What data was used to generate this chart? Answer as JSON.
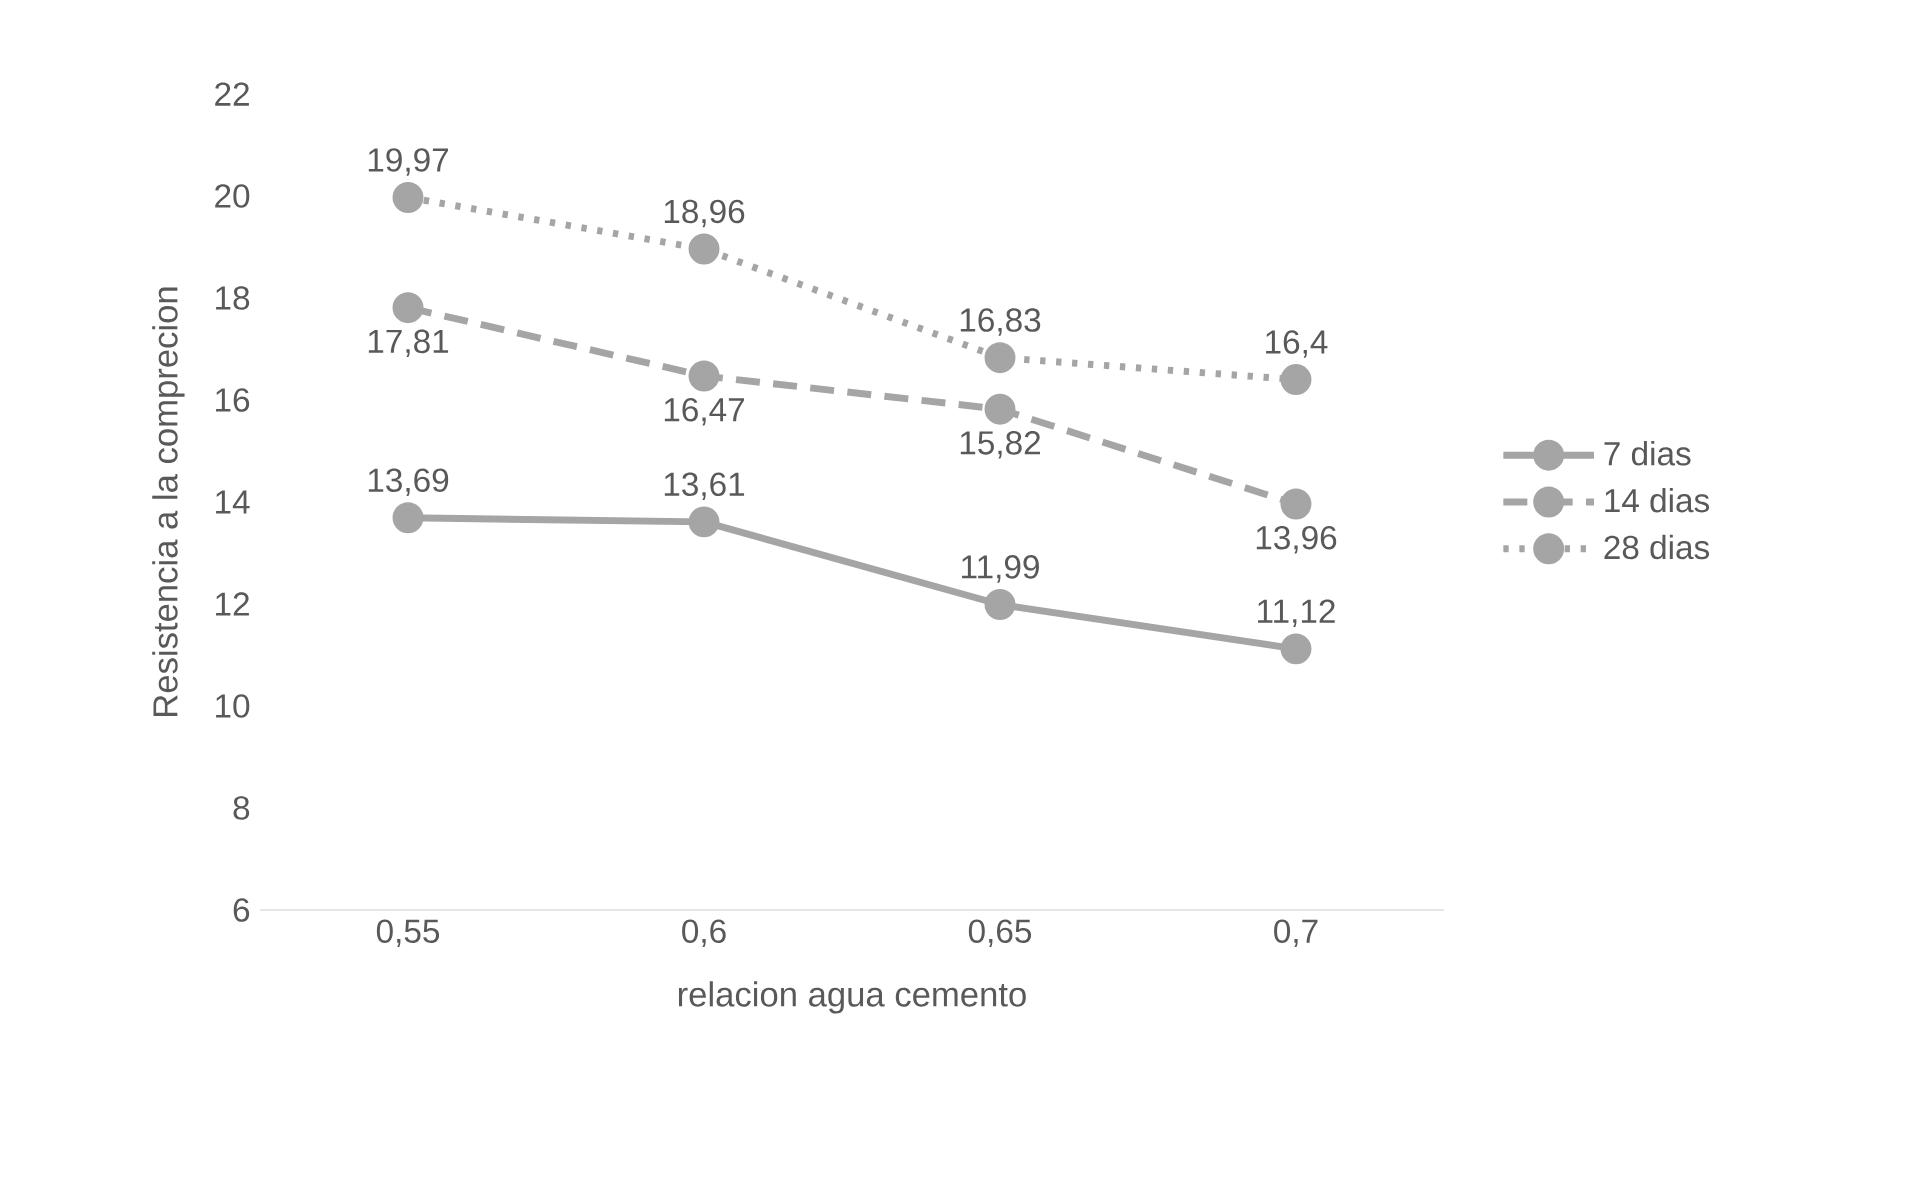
{
  "chart_data": {
    "type": "line",
    "xlabel": "relacion agua cemento",
    "ylabel": "Resistencia a la comprecion",
    "categories": [
      "0,55",
      "0,6",
      "0,65",
      "0,7"
    ],
    "ylim": [
      6,
      22
    ],
    "yticks": [
      6,
      8,
      10,
      12,
      14,
      16,
      18,
      20,
      22
    ],
    "series": [
      {
        "name": "7 dias",
        "color": "#a5a5a5",
        "line_style": "solid",
        "values": [
          13.69,
          13.61,
          11.99,
          11.12
        ],
        "value_labels": [
          "13,69",
          "13,61",
          "11,99",
          "11,12"
        ]
      },
      {
        "name": "14 dias",
        "color": "#a5a5a5",
        "line_style": "dashed",
        "values": [
          17.81,
          16.47,
          15.82,
          13.96
        ],
        "value_labels": [
          "17,81",
          "16,47",
          "15,82",
          "13,96"
        ]
      },
      {
        "name": "28 dias",
        "color": "#a5a5a5",
        "line_style": "dotted",
        "values": [
          19.97,
          18.96,
          16.83,
          16.4
        ],
        "value_labels": [
          "19,97",
          "18,96",
          "16,83",
          "16,4"
        ]
      }
    ],
    "marker": "circle",
    "legend": "right",
    "grid": false
  }
}
